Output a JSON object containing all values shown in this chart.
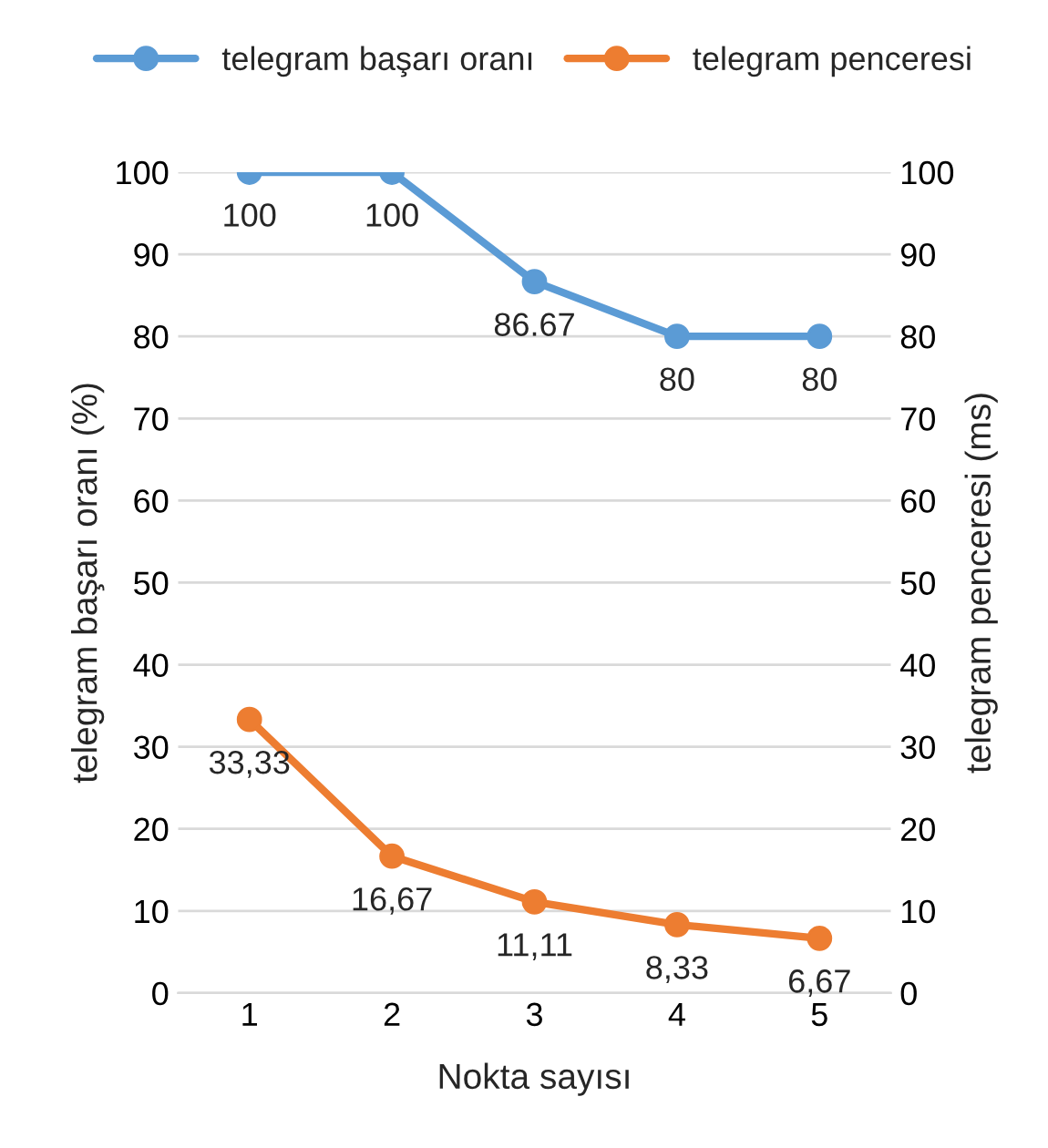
{
  "chart_data": {
    "type": "line",
    "categories": [
      "1",
      "2",
      "3",
      "4",
      "5"
    ],
    "series": [
      {
        "name": "telegram başarı oranı",
        "color": "#5b9bd5",
        "values": [
          100,
          100,
          86.67,
          80,
          80
        ],
        "value_labels": [
          "100",
          "100",
          "86.67",
          "80",
          "80"
        ]
      },
      {
        "name": "telegram penceresi",
        "color": "#ed7d31",
        "axis": "y2",
        "values": [
          33.33,
          16.67,
          11.11,
          8.33,
          6.67
        ],
        "value_labels": [
          "33,33",
          "16,67",
          "11,11",
          "8,33",
          "6,67"
        ]
      }
    ],
    "xlabel": "Nokta sayısı",
    "ylabel": "telegram başarı oranı (%)",
    "y2label": "telegram penceresi (ms)",
    "ylim": [
      0,
      100
    ],
    "yticks": [
      0,
      10,
      20,
      30,
      40,
      50,
      60,
      70,
      80,
      90,
      100
    ],
    "y2lim": [
      0,
      100
    ],
    "y2ticks": [
      0,
      10,
      20,
      30,
      40,
      50,
      60,
      70,
      80,
      90,
      100
    ],
    "grid": "y",
    "legend": "top",
    "marker": "circle",
    "line_style": "solid"
  }
}
